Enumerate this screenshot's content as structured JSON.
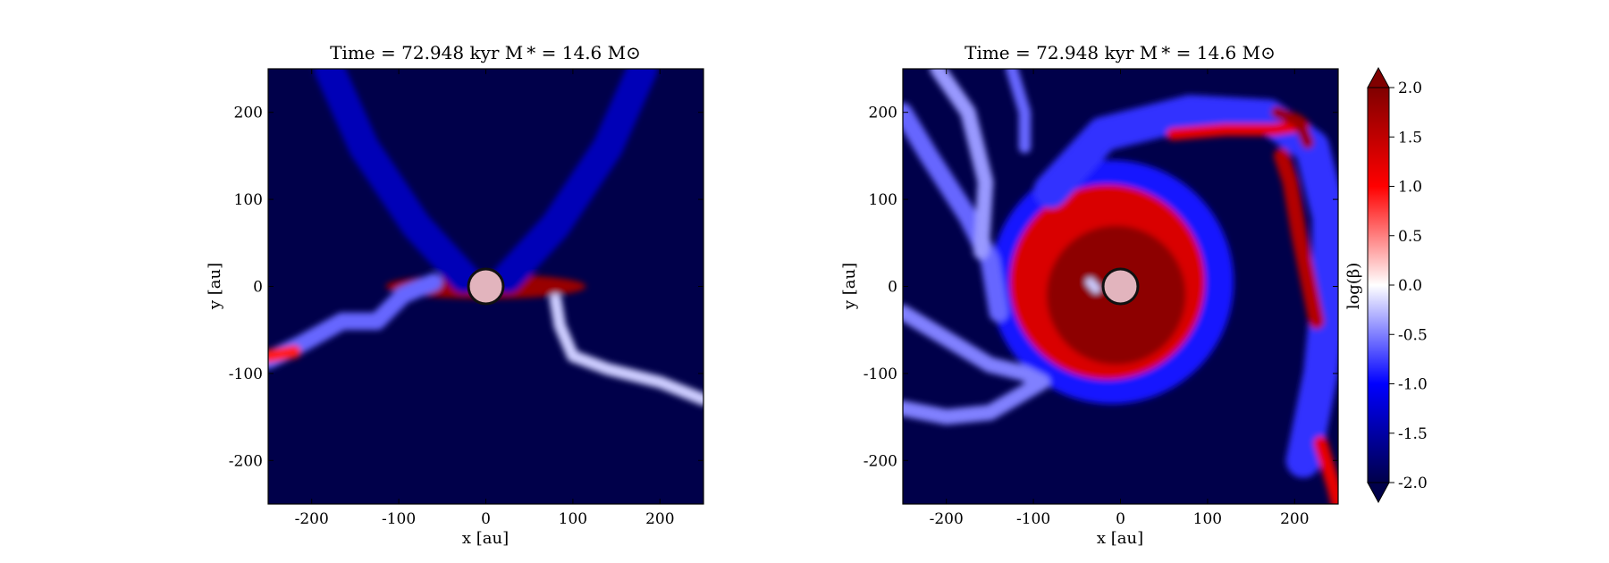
{
  "chart_data": [
    {
      "type": "heatmap",
      "title": "Time = 72.948 kyr    M * = 14.6 M⊙",
      "xlabel": "x [au]",
      "ylabel": "y [au]",
      "xlim": [
        -250,
        250
      ],
      "ylim": [
        -250,
        250
      ],
      "xticks": [
        -200,
        -100,
        0,
        100,
        200
      ],
      "yticks": [
        -200,
        -100,
        0,
        100,
        200
      ],
      "xtick_labels": [
        "-200",
        "-100",
        "0",
        "100",
        "200"
      ],
      "ytick_labels": [
        "-200",
        "-100",
        "0",
        "100",
        "200"
      ],
      "view": "edge-on",
      "sink_particle": {
        "x": 0,
        "y": 0,
        "radius_au": 20
      },
      "features": [
        {
          "kind": "disk",
          "shape": "ellipse",
          "cx": 0,
          "cy": 0,
          "rx": 115,
          "ry": 14,
          "level": 1.8
        },
        {
          "kind": "outflow-cavity-wall",
          "shape": "ribbon",
          "points": [
            [
              -25,
              10
            ],
            [
              -80,
              70
            ],
            [
              -140,
              160
            ],
            [
              -180,
              250
            ]
          ],
          "width_au": 35,
          "level": -1.4
        },
        {
          "kind": "outflow-cavity-wall",
          "shape": "ribbon",
          "points": [
            [
              25,
              10
            ],
            [
              80,
              70
            ],
            [
              140,
              160
            ],
            [
              180,
              250
            ]
          ],
          "width_au": 35,
          "level": -1.4
        },
        {
          "kind": "filament",
          "shape": "ribbon",
          "points": [
            [
              -60,
              5
            ],
            [
              -95,
              -10
            ],
            [
              -125,
              -40
            ],
            [
              -165,
              -40
            ],
            [
              -210,
              -65
            ],
            [
              -250,
              -85
            ]
          ],
          "width_au": 20,
          "level": -0.6
        },
        {
          "kind": "filament",
          "shape": "ribbon",
          "points": [
            [
              -250,
              -80
            ],
            [
              -220,
              -75
            ]
          ],
          "width_au": 15,
          "level": 0.9
        },
        {
          "kind": "filament",
          "shape": "ribbon",
          "points": [
            [
              80,
              -15
            ],
            [
              85,
              -45
            ],
            [
              100,
              -80
            ],
            [
              140,
              -95
            ],
            [
              200,
              -110
            ],
            [
              250,
              -130
            ]
          ],
          "width_au": 14,
          "level": -0.2
        }
      ]
    },
    {
      "type": "heatmap",
      "title": "Time = 72.948 kyr    M * = 14.6 M⊙",
      "xlabel": "x [au]",
      "ylabel": "y [au]",
      "xlim": [
        -250,
        250
      ],
      "ylim": [
        -250,
        250
      ],
      "xticks": [
        -200,
        -100,
        0,
        100,
        200
      ],
      "yticks": [
        -200,
        -100,
        0,
        100,
        200
      ],
      "xtick_labels": [
        "-200",
        "-100",
        "0",
        "100",
        "200"
      ],
      "ytick_labels": [
        "-200",
        "-100",
        "0",
        "100",
        "200"
      ],
      "view": "face-on",
      "sink_particle": {
        "x": 0,
        "y": 0,
        "radius_au": 20
      },
      "features": [
        {
          "kind": "disk-envelope",
          "shape": "disk",
          "cx": -10,
          "cy": 5,
          "r": 140,
          "level": -0.9
        },
        {
          "kind": "disk",
          "shape": "disk",
          "cx": -15,
          "cy": 5,
          "r": 112,
          "level": 1.3
        },
        {
          "kind": "disk-core",
          "shape": "disk",
          "cx": -5,
          "cy": -10,
          "r": 80,
          "level": 1.9
        },
        {
          "kind": "spiral-arm",
          "shape": "ribbon",
          "points": [
            [
              -80,
              110
            ],
            [
              -20,
              175
            ],
            [
              80,
              200
            ],
            [
              170,
              195
            ],
            [
              220,
              160
            ],
            [
              240,
              80
            ],
            [
              240,
              0
            ],
            [
              230,
              -100
            ],
            [
              210,
              -200
            ]
          ],
          "width_au": 40,
          "level": -0.8
        },
        {
          "kind": "spiral-arm",
          "shape": "ribbon",
          "points": [
            [
              60,
              175
            ],
            [
              120,
              180
            ],
            [
              175,
              180
            ],
            [
              210,
              185
            ]
          ],
          "width_au": 14,
          "level": 1.2
        },
        {
          "kind": "spiral-arm",
          "shape": "ribbon",
          "points": [
            [
              185,
              150
            ],
            [
              195,
              120
            ],
            [
              205,
              60
            ],
            [
              215,
              10
            ],
            [
              225,
              -40
            ]
          ],
          "width_au": 18,
          "level": 1.6
        },
        {
          "kind": "spiral-arm",
          "shape": "ribbon",
          "points": [
            [
              180,
              200
            ],
            [
              205,
              190
            ],
            [
              215,
              165
            ]
          ],
          "width_au": 14,
          "level": 1.8
        },
        {
          "kind": "filament",
          "shape": "ribbon",
          "points": [
            [
              -250,
              200
            ],
            [
              -220,
              150
            ],
            [
              -175,
              80
            ],
            [
              -150,
              30
            ],
            [
              -140,
              -30
            ]
          ],
          "width_au": 22,
          "level": -0.6
        },
        {
          "kind": "filament",
          "shape": "ribbon",
          "points": [
            [
              -210,
              250
            ],
            [
              -175,
              200
            ],
            [
              -165,
              160
            ],
            [
              -155,
              120
            ],
            [
              -160,
              40
            ]
          ],
          "width_au": 18,
          "level": -0.4
        },
        {
          "kind": "filament",
          "shape": "ribbon",
          "points": [
            [
              -250,
              -30
            ],
            [
              -200,
              -60
            ],
            [
              -150,
              -90
            ],
            [
              -110,
              -100
            ],
            [
              -90,
              -110
            ],
            [
              -150,
              -145
            ],
            [
              -200,
              -150
            ],
            [
              -250,
              -140
            ]
          ],
          "width_au": 18,
          "level": -0.5
        },
        {
          "kind": "filament",
          "shape": "ribbon",
          "points": [
            [
              -125,
              250
            ],
            [
              -110,
              200
            ],
            [
              -110,
              160
            ]
          ],
          "width_au": 14,
          "level": -0.6
        },
        {
          "kind": "filament",
          "shape": "ribbon",
          "points": [
            [
              230,
              -180
            ],
            [
              245,
              -230
            ],
            [
              250,
              -250
            ]
          ],
          "width_au": 16,
          "level": 1.2
        },
        {
          "kind": "filament",
          "shape": "ribbon",
          "points": [
            [
              -35,
              5
            ],
            [
              -28,
              -3
            ]
          ],
          "width_au": 10,
          "level": -0.2
        }
      ]
    }
  ],
  "colorbar": {
    "label": "log(β)",
    "min": -2.0,
    "max": 2.0,
    "ticks": [
      "2.0",
      "1.5",
      "1.0",
      "0.5",
      "0.0",
      "-0.5",
      "-1.0",
      "-1.5",
      "-2.0"
    ],
    "extend": "both",
    "colors": {
      "low": "#00004a",
      "mid_low": "#0000ff",
      "mid": "#ffffff",
      "mid_high": "#ff0000",
      "high": "#800000"
    }
  }
}
